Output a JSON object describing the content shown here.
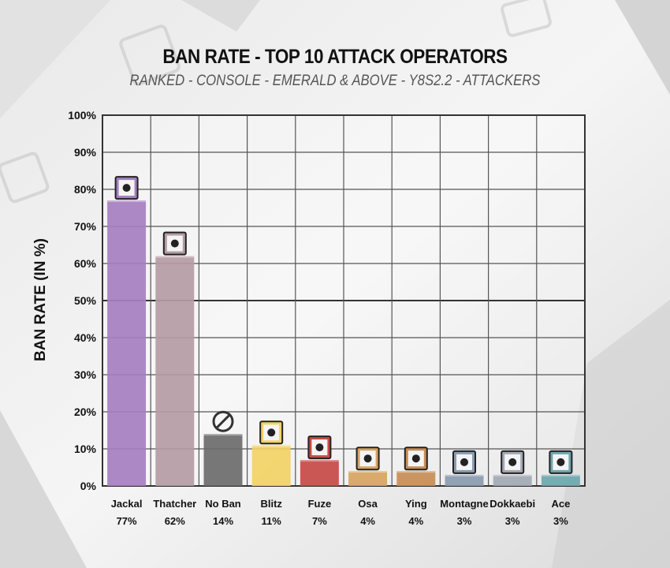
{
  "chart_data": {
    "type": "bar",
    "title": "BAN RATE - TOP 10 ATTACK OPERATORS",
    "subtitle": "RANKED - CONSOLE - EMERALD & ABOVE - Y8S2.2 - ATTACKERS",
    "ylabel": "BAN RATE (IN %)",
    "xlabel": "",
    "ylim": [
      0,
      100
    ],
    "yticks": [
      "0%",
      "10%",
      "20%",
      "30%",
      "40%",
      "50%",
      "60%",
      "70%",
      "80%",
      "90%",
      "100%"
    ],
    "grid": true,
    "categories": [
      "Jackal",
      "Thatcher",
      "No Ban",
      "Blitz",
      "Fuze",
      "Osa",
      "Ying",
      "Montagne",
      "Dokkaebi",
      "Ace"
    ],
    "values": [
      77,
      62,
      14,
      11,
      7,
      4,
      4,
      3,
      3,
      3
    ],
    "value_labels": [
      "77%",
      "62%",
      "14%",
      "11%",
      "7%",
      "4%",
      "4%",
      "3%",
      "3%",
      "3%"
    ],
    "colors": [
      "#a57fc0",
      "#b49ba3",
      "#6b6b6b",
      "#f2d365",
      "#c84a48",
      "#d6a460",
      "#c88d55",
      "#8a9bb0",
      "#a3a9b3",
      "#6ea6ae"
    ],
    "icons": [
      "jackal-icon",
      "thatcher-icon",
      "no-ban-icon",
      "blitz-icon",
      "fuze-icon",
      "osa-icon",
      "ying-icon",
      "montagne-icon",
      "dokkaebi-icon",
      "ace-icon"
    ]
  }
}
